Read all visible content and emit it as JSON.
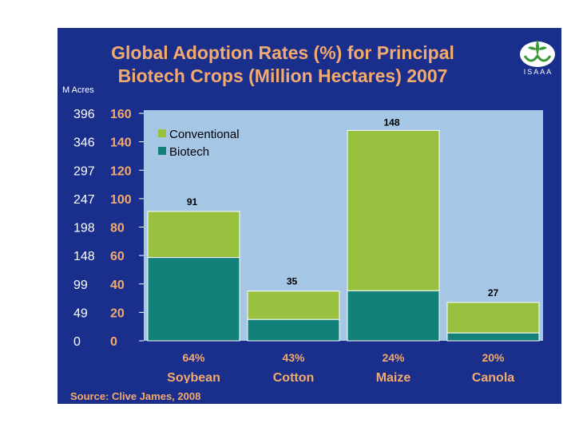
{
  "slide": {
    "title_line1": "Global Adoption Rates (%) for Principal",
    "title_line2": "Biotech Crops (Million Hectares) 2007",
    "logo_text": "ISAAA",
    "left_axis_label": "M Acres",
    "source": "Source: Clive James, 2008"
  },
  "colors": {
    "background": "#1a2f8c",
    "plot_area": "#a5c6e4",
    "conventional": "#98c13f",
    "biotech": "#13807a",
    "accent_text": "#f2aa6e"
  },
  "chart_data": {
    "type": "bar",
    "stacked": true,
    "categories": [
      "Soybean",
      "Cotton",
      "Maize",
      "Canola"
    ],
    "adoption_pct_labels": [
      "64%",
      "43%",
      "24%",
      "20%"
    ],
    "series": [
      {
        "name": "Biotech",
        "values": [
          58.6,
          15.0,
          35.2,
          5.5
        ]
      },
      {
        "name": "Conventional",
        "values": [
          32.4,
          20.0,
          112.8,
          21.5
        ]
      }
    ],
    "totals": [
      91,
      35,
      148,
      27
    ],
    "total_labels": [
      "91",
      "35",
      "148",
      "27"
    ],
    "legend": [
      "Conventional",
      "Biotech"
    ],
    "y_ticks_hectares": [
      "0",
      "20",
      "40",
      "60",
      "80",
      "100",
      "120",
      "140",
      "160"
    ],
    "y_ticks_acres": [
      "0",
      "49",
      "99",
      "148",
      "198",
      "247",
      "297",
      "346",
      "396"
    ],
    "ylim": [
      0,
      160
    ]
  }
}
